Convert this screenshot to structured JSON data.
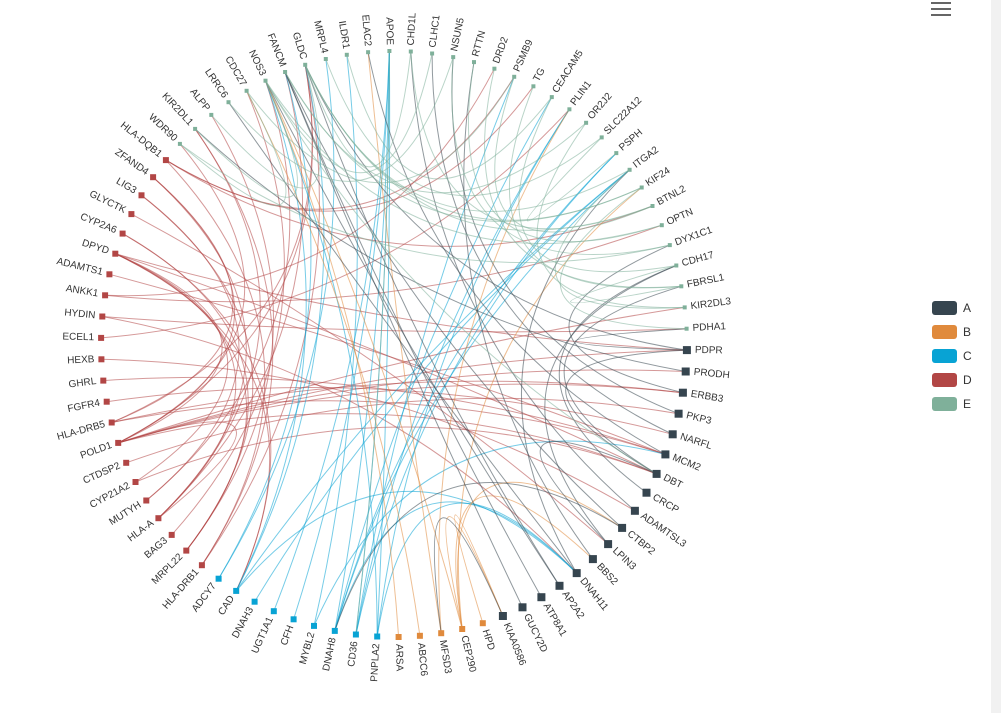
{
  "chart_data": {
    "type": "chord-graph",
    "categories": [
      {
        "name": "A",
        "color": "#36454f"
      },
      {
        "name": "B",
        "color": "#e08a3c"
      },
      {
        "name": "C",
        "color": "#08a3d4"
      },
      {
        "name": "D",
        "color": "#b24645"
      },
      {
        "name": "E",
        "color": "#7fb09a"
      }
    ],
    "nodes": [
      {
        "name": "PDPR",
        "category": "A"
      },
      {
        "name": "PRODH",
        "category": "A"
      },
      {
        "name": "ERBB3",
        "category": "A"
      },
      {
        "name": "PKP3",
        "category": "A"
      },
      {
        "name": "NARFL",
        "category": "A"
      },
      {
        "name": "MCM2",
        "category": "A"
      },
      {
        "name": "DBT",
        "category": "A"
      },
      {
        "name": "CRCP",
        "category": "A"
      },
      {
        "name": "ADAMTSL3",
        "category": "A"
      },
      {
        "name": "CTBP2",
        "category": "A"
      },
      {
        "name": "LPIN3",
        "category": "A"
      },
      {
        "name": "BBS2",
        "category": "A"
      },
      {
        "name": "DNAH11",
        "category": "A"
      },
      {
        "name": "AP2A2",
        "category": "A"
      },
      {
        "name": "ATP8A1",
        "category": "A"
      },
      {
        "name": "GUCY2D",
        "category": "A"
      },
      {
        "name": "KIAA0586",
        "category": "A"
      },
      {
        "name": "HPD",
        "category": "B"
      },
      {
        "name": "CEP290",
        "category": "B"
      },
      {
        "name": "MFSD3",
        "category": "B"
      },
      {
        "name": "ABCC6",
        "category": "B"
      },
      {
        "name": "ARSA",
        "category": "B"
      },
      {
        "name": "PNPLA2",
        "category": "C"
      },
      {
        "name": "CD36",
        "category": "C"
      },
      {
        "name": "DNAH8",
        "category": "C"
      },
      {
        "name": "MYBL2",
        "category": "C"
      },
      {
        "name": "CFH",
        "category": "C"
      },
      {
        "name": "UGT1A1",
        "category": "C"
      },
      {
        "name": "DNAH3",
        "category": "C"
      },
      {
        "name": "CAD",
        "category": "C"
      },
      {
        "name": "ADCY7",
        "category": "C"
      },
      {
        "name": "HLA-DRB1",
        "category": "D"
      },
      {
        "name": "MRPL22",
        "category": "D"
      },
      {
        "name": "BAG3",
        "category": "D"
      },
      {
        "name": "HLA-A",
        "category": "D"
      },
      {
        "name": "MUTYH",
        "category": "D"
      },
      {
        "name": "CYP21A2",
        "category": "D"
      },
      {
        "name": "CTDSP2",
        "category": "D"
      },
      {
        "name": "POLD1",
        "category": "D"
      },
      {
        "name": "HLA-DRB5",
        "category": "D"
      },
      {
        "name": "FGFR4",
        "category": "D"
      },
      {
        "name": "GHRL",
        "category": "D"
      },
      {
        "name": "HEXB",
        "category": "D"
      },
      {
        "name": "ECEL1",
        "category": "D"
      },
      {
        "name": "HYDIN",
        "category": "D"
      },
      {
        "name": "ANKK1",
        "category": "D"
      },
      {
        "name": "ADAMTS1",
        "category": "D"
      },
      {
        "name": "DPYD",
        "category": "D"
      },
      {
        "name": "CYP2A6",
        "category": "D"
      },
      {
        "name": "GLYCTK",
        "category": "D"
      },
      {
        "name": "LIG3",
        "category": "D"
      },
      {
        "name": "ZFAND4",
        "category": "D"
      },
      {
        "name": "HLA-DQB1",
        "category": "D"
      },
      {
        "name": "WDR90",
        "category": "E"
      },
      {
        "name": "KIR2DL1",
        "category": "E"
      },
      {
        "name": "ALPP",
        "category": "E"
      },
      {
        "name": "LRRC6",
        "category": "E"
      },
      {
        "name": "CDC27",
        "category": "E"
      },
      {
        "name": "NOS3",
        "category": "E"
      },
      {
        "name": "FANCM",
        "category": "E"
      },
      {
        "name": "GLDC",
        "category": "E"
      },
      {
        "name": "MRPL4",
        "category": "E"
      },
      {
        "name": "ILDR1",
        "category": "E"
      },
      {
        "name": "ELAC2",
        "category": "E"
      },
      {
        "name": "APOE",
        "category": "E"
      },
      {
        "name": "CHD1L",
        "category": "E"
      },
      {
        "name": "CLHC1",
        "category": "E"
      },
      {
        "name": "NSUN5",
        "category": "E"
      },
      {
        "name": "RTTN",
        "category": "E"
      },
      {
        "name": "DRD2",
        "category": "E"
      },
      {
        "name": "PSMB9",
        "category": "E"
      },
      {
        "name": "TG",
        "category": "E"
      },
      {
        "name": "CEACAM5",
        "category": "E"
      },
      {
        "name": "PLIN1",
        "category": "E"
      },
      {
        "name": "OR2J2",
        "category": "E"
      },
      {
        "name": "SLC22A12",
        "category": "E"
      },
      {
        "name": "PSPH",
        "category": "E"
      },
      {
        "name": "ITGA2",
        "category": "E"
      },
      {
        "name": "KIF24",
        "category": "E"
      },
      {
        "name": "BTNL2",
        "category": "E"
      },
      {
        "name": "OPTN",
        "category": "E"
      },
      {
        "name": "DYX1C1",
        "category": "E"
      },
      {
        "name": "CDH17",
        "category": "E"
      },
      {
        "name": "FBRSL1",
        "category": "E"
      },
      {
        "name": "KIR2DL3",
        "category": "E"
      },
      {
        "name": "PDHA1",
        "category": "E"
      }
    ],
    "links": [
      [
        "DPYD",
        "POLD1"
      ],
      [
        "DPYD",
        "HLA-A"
      ],
      [
        "DPYD",
        "MRPL22"
      ],
      [
        "DPYD",
        "DBT"
      ],
      [
        "DPYD",
        "CAD"
      ],
      [
        "DPYD",
        "CYP21A2"
      ],
      [
        "DPYD",
        "PDPR"
      ],
      [
        "POLD1",
        "HLA-A"
      ],
      [
        "POLD1",
        "ZFAND4"
      ],
      [
        "POLD1",
        "WDR90"
      ],
      [
        "POLD1",
        "PDPR"
      ],
      [
        "POLD1",
        "DBT"
      ],
      [
        "POLD1",
        "GLDC"
      ],
      [
        "POLD1",
        "PRODH"
      ],
      [
        "POLD1",
        "ERBB3"
      ],
      [
        "POLD1",
        "KIR2DL3"
      ],
      [
        "HLA-DRB5",
        "ZFAND4"
      ],
      [
        "HLA-DRB5",
        "ERBB3"
      ],
      [
        "HLA-DRB5",
        "GLDC"
      ],
      [
        "HLA-DRB5",
        "MCM2"
      ],
      [
        "HLA-A",
        "ZFAND4"
      ],
      [
        "HLA-A",
        "KIR2DL1"
      ],
      [
        "HLA-A",
        "FANCM"
      ],
      [
        "HLA-DRB1",
        "HLA-DQB1"
      ],
      [
        "HLA-DRB1",
        "KIR2DL1"
      ],
      [
        "HLA-DRB1",
        "GLDC"
      ],
      [
        "MRPL22",
        "LIG3"
      ],
      [
        "MRPL22",
        "CYP2A6"
      ],
      [
        "MRPL22",
        "ALPP"
      ],
      [
        "MUTYH",
        "LIG3"
      ],
      [
        "MUTYH",
        "NOS3"
      ],
      [
        "BAG3",
        "CDC27"
      ],
      [
        "CYP21A2",
        "DBT"
      ],
      [
        "CTDSP2",
        "PKP3"
      ],
      [
        "FGFR4",
        "NARFL"
      ],
      [
        "GHRL",
        "MCM2"
      ],
      [
        "HEXB",
        "ADAMTSL3"
      ],
      [
        "ECEL1",
        "PLIN1"
      ],
      [
        "HYDIN",
        "DNAH11"
      ],
      [
        "HYDIN",
        "PDHA1"
      ],
      [
        "ANKK1",
        "DRD2"
      ],
      [
        "ANKK1",
        "OPTN"
      ],
      [
        "ADAMTS1",
        "MCM2"
      ],
      [
        "CYP2A6",
        "CAD"
      ],
      [
        "GLYCTK",
        "LPIN3"
      ],
      [
        "HLA-DQB1",
        "BTNL2"
      ],
      [
        "HLA-DQB1",
        "TG"
      ],
      [
        "HLA-DQB1",
        "PSMB9"
      ],
      [
        "CAD",
        "NOS3"
      ],
      [
        "CAD",
        "GLDC"
      ],
      [
        "CAD",
        "DNAH11"
      ],
      [
        "CAD",
        "ITGA2"
      ],
      [
        "ADCY7",
        "FANCM"
      ],
      [
        "ADCY7",
        "MRPL4"
      ],
      [
        "DNAH3",
        "ITGA2"
      ],
      [
        "UGT1A1",
        "APOE"
      ],
      [
        "CFH",
        "APOE"
      ],
      [
        "MYBL2",
        "MCM2"
      ],
      [
        "MYBL2",
        "ILDR1"
      ],
      [
        "DNAH8",
        "APOE"
      ],
      [
        "DNAH8",
        "ITGA2"
      ],
      [
        "DNAH8",
        "DNAH11"
      ],
      [
        "DNAH8",
        "CEACAM5"
      ],
      [
        "DNAH8",
        "PSPH"
      ],
      [
        "CD36",
        "APOE"
      ],
      [
        "CD36",
        "PSPH"
      ],
      [
        "CD36",
        "PSMB9"
      ],
      [
        "CD36",
        "PLIN1"
      ],
      [
        "PNPLA2",
        "PLIN1"
      ],
      [
        "PNPLA2",
        "APOE"
      ],
      [
        "PNPLA2",
        "DNAH11"
      ],
      [
        "PNPLA2",
        "NOS3"
      ],
      [
        "ARSA",
        "NOS3"
      ],
      [
        "ABCC6",
        "CDC27"
      ],
      [
        "MFSD3",
        "PLIN1"
      ],
      [
        "MFSD3",
        "ELAC2"
      ],
      [
        "CEP290",
        "KIF24"
      ],
      [
        "CEP290",
        "BBS2"
      ],
      [
        "CEP290",
        "CTBP2"
      ],
      [
        "CEP290",
        "KIAA0586"
      ],
      [
        "CEP290",
        "NOS3"
      ],
      [
        "HPD",
        "KIAA0586"
      ],
      [
        "KIAA0586",
        "MFSD3"
      ],
      [
        "GUCY2D",
        "FANCM"
      ],
      [
        "ATP8A1",
        "FANCM"
      ],
      [
        "AP2A2",
        "NOS3"
      ],
      [
        "AP2A2",
        "GLDC"
      ],
      [
        "DNAH11",
        "LRRC6"
      ],
      [
        "DNAH11",
        "ITGA2"
      ],
      [
        "BBS2",
        "RTTN"
      ],
      [
        "LPIN3",
        "CDH17"
      ],
      [
        "LPIN3",
        "DBT"
      ],
      [
        "CTBP2",
        "FANCM"
      ],
      [
        "CTBP2",
        "DNAH8"
      ],
      [
        "ADAMTSL3",
        "CHD1L"
      ],
      [
        "CRCP",
        "CDH17"
      ],
      [
        "DBT",
        "FBRSL1"
      ],
      [
        "MCM2",
        "ELAC2"
      ],
      [
        "NARFL",
        "CLHC1"
      ],
      [
        "PKP3",
        "NSUN5"
      ],
      [
        "ERBB3",
        "DYX1C1"
      ],
      [
        "PRODH",
        "KIR2DL1"
      ],
      [
        "PDPR",
        "GLDC"
      ],
      [
        "PDPR",
        "PDHA1"
      ],
      [
        "PDPR",
        "DBT"
      ],
      [
        "WDR90",
        "CDC27"
      ],
      [
        "WDR90",
        "DYX1C1"
      ],
      [
        "KIR2DL1",
        "NOS3"
      ],
      [
        "ALPP",
        "GLDC"
      ],
      [
        "LRRC6",
        "NSUN5"
      ],
      [
        "CDC27",
        "PSMB9"
      ],
      [
        "NOS3",
        "CLHC1"
      ],
      [
        "NOS3",
        "OPTN"
      ],
      [
        "NOS3",
        "DBT"
      ],
      [
        "FANCM",
        "OR2J2"
      ],
      [
        "FANCM",
        "KIF24"
      ],
      [
        "GLDC",
        "KIF24"
      ],
      [
        "GLDC",
        "CHD1L"
      ],
      [
        "GLDC",
        "ITGA2"
      ],
      [
        "GLDC",
        "BTNL2"
      ],
      [
        "MRPL4",
        "SLC22A12"
      ],
      [
        "ILDR1",
        "CEACAM5"
      ],
      [
        "APOE",
        "CD36"
      ],
      [
        "CHD1L",
        "BTNL2"
      ],
      [
        "NSUN5",
        "DYX1C1"
      ],
      [
        "RTTN",
        "OPTN"
      ],
      [
        "DRD2",
        "FBRSL1"
      ],
      [
        "PSMB9",
        "BTNL2"
      ],
      [
        "TG",
        "FBRSL1"
      ],
      [
        "CEACAM5",
        "CDH17"
      ],
      [
        "OR2J2",
        "KIR2DL3"
      ],
      [
        "SLC22A12",
        "PSPH"
      ],
      [
        "ITGA2",
        "KIR2DL3"
      ],
      [
        "KIF24",
        "PDHA1"
      ],
      [
        "CDH17",
        "FBRSL1"
      ]
    ]
  },
  "toolbar": {
    "menu_icon": "hamburger-menu-icon"
  }
}
